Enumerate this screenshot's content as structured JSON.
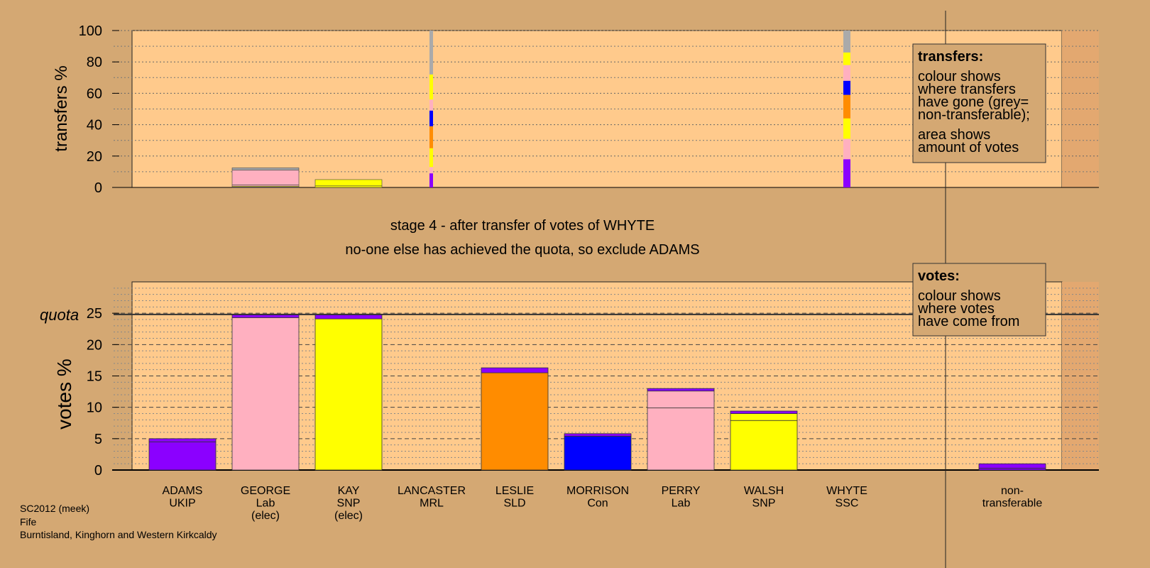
{
  "chart_data": [
    {
      "type": "bar",
      "name": "transfers",
      "ylabel": "transfers %",
      "ylim": [
        0,
        100
      ],
      "yticks": [
        0,
        20,
        40,
        60,
        80,
        100
      ],
      "legend": {
        "title": "transfers:",
        "lines": [
          "colour shows",
          "where transfers",
          "have gone (grey=",
          "non-transferable);",
          "area shows",
          "amount of votes"
        ],
        "placement": "top-right"
      },
      "columns": [
        {
          "candidate": "GEORGE",
          "segments": [
            {
              "color": "#8b00ff",
              "value": 0.3
            },
            {
              "color": "#ffff00",
              "value": 0.5
            },
            {
              "color": "#ffb0c0",
              "value": 0.8
            },
            {
              "color": "#ffb0c0",
              "value": 9.5
            },
            {
              "color": "#aaaaaa",
              "value": 1.4
            }
          ]
        },
        {
          "candidate": "KAY",
          "segments": [
            {
              "color": "#ffff00",
              "value": 1.0
            },
            {
              "color": "#ffff00",
              "value": 4.0
            }
          ]
        },
        {
          "candidate": "LANCASTER",
          "segments": [
            {
              "color": "#8b00ff",
              "value": 9
            },
            {
              "color": "#ffb0c0",
              "value": 4
            },
            {
              "color": "#ffff00",
              "value": 12
            },
            {
              "color": "#ff8c00",
              "value": 14
            },
            {
              "color": "#0000ff",
              "value": 10
            },
            {
              "color": "#ffb0c0",
              "value": 7
            },
            {
              "color": "#ffff00",
              "value": 16
            },
            {
              "color": "#aaaaaa",
              "value": 28
            }
          ]
        },
        {
          "candidate": "WHYTE",
          "segments": [
            {
              "color": "#8b00ff",
              "value": 18
            },
            {
              "color": "#ffb0c0",
              "value": 13
            },
            {
              "color": "#ffff00",
              "value": 13
            },
            {
              "color": "#ff8c00",
              "value": 15
            },
            {
              "color": "#0000ff",
              "value": 9
            },
            {
              "color": "#ffb0c0",
              "value": 10
            },
            {
              "color": "#ffff00",
              "value": 8
            },
            {
              "color": "#aaaaaa",
              "value": 14
            }
          ]
        }
      ]
    },
    {
      "type": "bar",
      "name": "votes",
      "ylabel": "votes %",
      "ylim": [
        0,
        30
      ],
      "yticks": [
        0,
        5,
        10,
        15,
        20,
        25
      ],
      "quota": 24.8,
      "quota_label": "quota",
      "legend": {
        "title": "votes:",
        "lines": [
          "colour shows",
          "where votes",
          "have come from"
        ],
        "placement": "top-right"
      },
      "candidates": [
        {
          "lines": [
            "ADAMS",
            "UKIP"
          ],
          "segments": [
            {
              "color": "#8b00ff",
              "value": 4.5
            },
            {
              "color": "#8b00ff",
              "value": 0.5
            }
          ]
        },
        {
          "lines": [
            "GEORGE",
            "Lab",
            "(elec)"
          ],
          "segments": [
            {
              "color": "#ffb0c0",
              "value": 24.3
            },
            {
              "color": "#8b00ff",
              "value": 0.5
            }
          ]
        },
        {
          "lines": [
            "KAY",
            "SNP",
            "(elec)"
          ],
          "segments": [
            {
              "color": "#ffff00",
              "value": 24.1
            },
            {
              "color": "#8b00ff",
              "value": 0.7
            }
          ]
        },
        {
          "lines": [
            "LANCASTER",
            "MRL"
          ],
          "segments": []
        },
        {
          "lines": [
            "LESLIE",
            "SLD"
          ],
          "segments": [
            {
              "color": "#ff8c00",
              "value": 15.5
            },
            {
              "color": "#8b00ff",
              "value": 0.8
            }
          ]
        },
        {
          "lines": [
            "MORRISON",
            "Con"
          ],
          "segments": [
            {
              "color": "#0000ff",
              "value": 5.4
            },
            {
              "color": "#8b00ff",
              "value": 0.4
            }
          ]
        },
        {
          "lines": [
            "PERRY",
            "Lab"
          ],
          "segments": [
            {
              "color": "#ffb0c0",
              "value": 9.9
            },
            {
              "color": "#ffb0c0",
              "value": 2.7
            },
            {
              "color": "#8b00ff",
              "value": 0.4
            }
          ]
        },
        {
          "lines": [
            "WALSH",
            "SNP"
          ],
          "segments": [
            {
              "color": "#ffff00",
              "value": 7.9
            },
            {
              "color": "#ffff00",
              "value": 1.1
            },
            {
              "color": "#8b00ff",
              "value": 0.4
            }
          ]
        },
        {
          "lines": [
            "WHYTE",
            "SSC"
          ],
          "segments": []
        }
      ],
      "nontransferable": {
        "lines": [
          "non-",
          "transferable"
        ],
        "segments": [
          {
            "color": "#8b00ff",
            "value": 0.3
          },
          {
            "color": "#8b00ff",
            "value": 0.7
          }
        ]
      }
    }
  ],
  "stage_text": "stage 4 - after transfer of votes of WHYTE",
  "status_text": "no-one else has achieved the quota, so exclude ADAMS",
  "footer": [
    "SC2012 (meek)",
    "Fife",
    "Burntisland, Kinghorn and Western Kirkcaldy"
  ]
}
